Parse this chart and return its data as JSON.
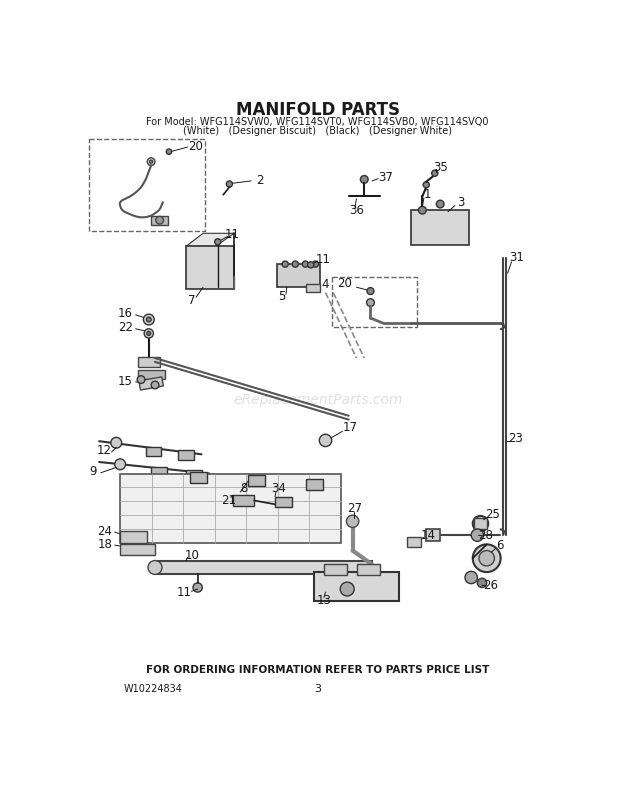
{
  "title": "MANIFOLD PARTS",
  "subtitle_line1": "For Model: WFG114SVW0, WFG114SVT0, WFG114SVB0, WFG114SVQ0",
  "subtitle_line2": "(White)   (Designer Biscuit)   (Black)   (Designer White)",
  "footer_text": "FOR ORDERING INFORMATION REFER TO PARTS PRICE LIST",
  "part_number": "W10224834",
  "page_number": "3",
  "watermark": "eReplacementParts.com",
  "bg_color": "#ffffff",
  "lc": "#1a1a1a",
  "title_fontsize": 12,
  "subtitle_fontsize": 7.0,
  "label_fontsize": 7.5
}
